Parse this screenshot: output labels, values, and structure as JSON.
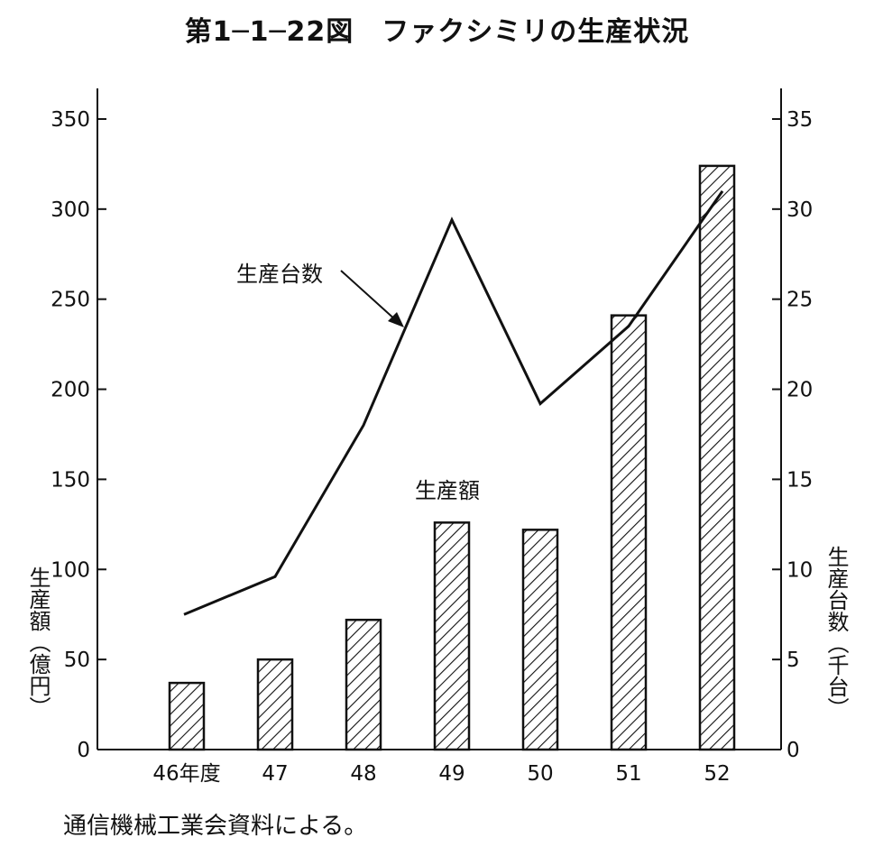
{
  "title": "第1─1─22図　ファクシミリの生産状況",
  "source": "通信機械工業会資料による。",
  "chart_data": {
    "type": "bar",
    "categories": [
      "46年度",
      "47",
      "48",
      "49",
      "50",
      "51",
      "52"
    ],
    "series": [
      {
        "name": "生産額",
        "axis": "left",
        "type": "bar",
        "values": [
          37,
          50,
          72,
          126,
          122,
          241,
          324
        ]
      },
      {
        "name": "生産台数",
        "axis": "right",
        "type": "line",
        "values": [
          7.5,
          9.6,
          18,
          29.4,
          19.2,
          23.5,
          31
        ]
      }
    ],
    "y_left": {
      "label": "生産額（億円）",
      "range": [
        0,
        367
      ],
      "ticks": [
        0,
        50,
        100,
        150,
        200,
        250,
        300,
        350
      ]
    },
    "y_right": {
      "label": "生産台数（千台）",
      "range": [
        0,
        36.7
      ],
      "ticks": [
        0,
        5,
        10,
        15,
        20,
        25,
        30,
        35
      ]
    },
    "annotations": {
      "line_label": "生産台数",
      "bar_label": "生産額"
    },
    "bar_pattern": "diagonal-hatch",
    "grid": false
  }
}
